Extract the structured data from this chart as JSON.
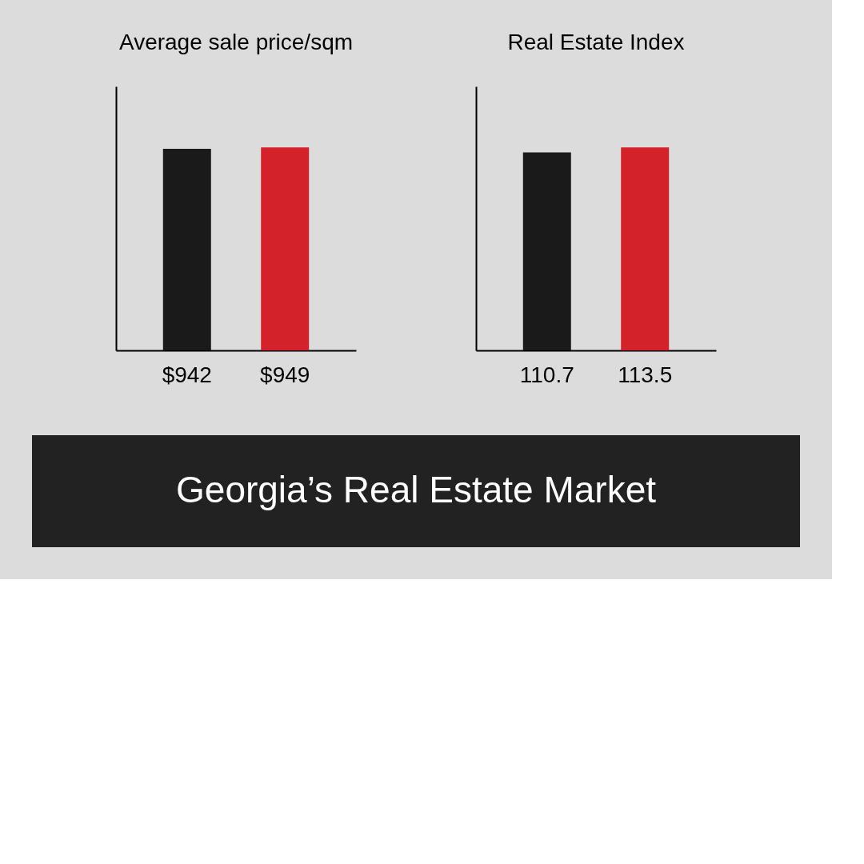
{
  "chart_data": [
    {
      "type": "bar",
      "title": "Average sale price/sqm",
      "categories": [
        null,
        null
      ],
      "values": [
        942,
        949
      ],
      "colors": [
        "#1a1a1a",
        "#d4222a"
      ],
      "value_labels": [
        "$942",
        "$949"
      ],
      "tick_labels": false
    },
    {
      "type": "bar",
      "title": "Real Estate Index",
      "categories": [
        null,
        null
      ],
      "values": [
        110.7,
        113.5
      ],
      "colors": [
        "#1a1a1a",
        "#d4222a"
      ],
      "data_labels": true,
      "tick_labels": false
    },
    {
      "type": "other",
      "title": "Georgia’s Real Estate Market"
    }
  ]
}
